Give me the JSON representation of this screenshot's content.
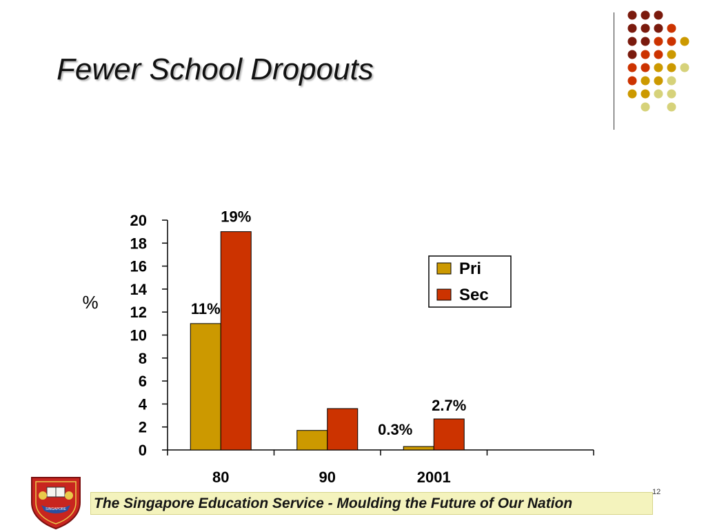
{
  "slide": {
    "title": "Fewer School Dropouts",
    "footer": "The Singapore Education Service - Moulding the Future of Our Nation",
    "slide_number": "12",
    "crest_text": "SINGAPORE"
  },
  "colors": {
    "pri": "#cc9900",
    "sec": "#cc3300",
    "dot_palette": [
      "#7a1a0d",
      "#cc3300",
      "#cc9900",
      "#d6d27a"
    ]
  },
  "chart_data": {
    "type": "bar",
    "title": "",
    "xlabel": "",
    "ylabel": "%",
    "ylim": [
      0,
      20
    ],
    "yticks": [
      0,
      2,
      4,
      6,
      8,
      10,
      12,
      14,
      16,
      18,
      20
    ],
    "categories": [
      "80",
      "90",
      "2001"
    ],
    "series": [
      {
        "name": "Pri",
        "values": [
          11,
          1.7,
          0.3
        ],
        "labels": [
          "11%",
          "",
          "0.3%"
        ]
      },
      {
        "name": "Sec",
        "values": [
          19,
          3.6,
          2.7
        ],
        "labels": [
          "19%",
          "",
          "2.7%"
        ]
      }
    ],
    "legend_position": "right",
    "grid": false
  }
}
